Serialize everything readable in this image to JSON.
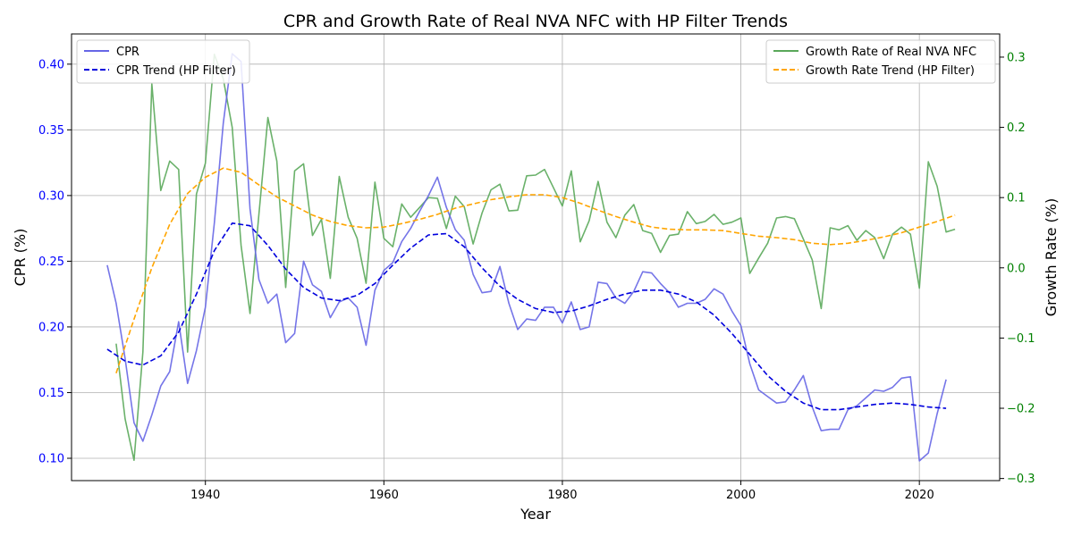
{
  "chart_data": {
    "type": "line",
    "title": "CPR and Growth Rate of Real NVA NFC with HP Filter Trends",
    "xlabel": "Year",
    "ylabel_left": "CPR (%)",
    "ylabel_right": "Growth Rate (%)",
    "xlim": [
      1925,
      2029
    ],
    "ylim_left": [
      0.083,
      0.423
    ],
    "ylim_right": [
      -0.303,
      0.333
    ],
    "x_ticks": [
      1940,
      1960,
      1980,
      2000,
      2020
    ],
    "y_ticks_left": [
      0.1,
      0.15,
      0.2,
      0.25,
      0.3,
      0.35,
      0.4
    ],
    "y_ticks_right": [
      -0.3,
      -0.2,
      -0.1,
      0.0,
      0.1,
      0.2,
      0.3
    ],
    "y_tick_labels_left": [
      "0.10",
      "0.15",
      "0.20",
      "0.25",
      "0.30",
      "0.35",
      "0.40"
    ],
    "y_tick_labels_right": [
      "−0.3",
      "−0.2",
      "−0.1",
      "0.0",
      "0.1",
      "0.2",
      "0.3"
    ],
    "grid": true,
    "legend_left_placement": "upper-left",
    "legend_right_placement": "upper-right",
    "colors": {
      "cpr": "#6666e6",
      "cpr_trend": "#0000dd",
      "growth": "#5aa85a",
      "growth_trend": "#ffa500",
      "left_tick": "#0000ff",
      "right_tick": "#008000"
    },
    "series": [
      {
        "name": "CPR",
        "axis": "left",
        "style": "solid",
        "color_key": "cpr",
        "x": [
          1929,
          1930,
          1931,
          1932,
          1933,
          1934,
          1935,
          1936,
          1937,
          1938,
          1939,
          1940,
          1941,
          1942,
          1943,
          1944,
          1945,
          1946,
          1947,
          1948,
          1949,
          1950,
          1951,
          1952,
          1953,
          1954,
          1955,
          1956,
          1957,
          1958,
          1959,
          1960,
          1961,
          1962,
          1963,
          1964,
          1965,
          1966,
          1967,
          1968,
          1969,
          1970,
          1971,
          1972,
          1973,
          1974,
          1975,
          1976,
          1977,
          1978,
          1979,
          1980,
          1981,
          1982,
          1983,
          1984,
          1985,
          1986,
          1987,
          1988,
          1989,
          1990,
          1991,
          1992,
          1993,
          1994,
          1995,
          1996,
          1997,
          1998,
          1999,
          2000,
          2001,
          2002,
          2003,
          2004,
          2005,
          2006,
          2007,
          2008,
          2009,
          2010,
          2011,
          2012,
          2013,
          2014,
          2015,
          2016,
          2017,
          2018,
          2019,
          2020,
          2021,
          2022,
          2023
        ],
        "y": [
          0.247,
          0.218,
          0.176,
          0.127,
          0.113,
          0.133,
          0.155,
          0.166,
          0.204,
          0.157,
          0.182,
          0.215,
          0.279,
          0.355,
          0.408,
          0.402,
          0.29,
          0.236,
          0.218,
          0.225,
          0.188,
          0.195,
          0.25,
          0.232,
          0.227,
          0.207,
          0.219,
          0.222,
          0.215,
          0.186,
          0.228,
          0.243,
          0.249,
          0.265,
          0.275,
          0.288,
          0.3,
          0.314,
          0.291,
          0.274,
          0.266,
          0.24,
          0.226,
          0.227,
          0.246,
          0.218,
          0.198,
          0.206,
          0.205,
          0.215,
          0.215,
          0.203,
          0.219,
          0.198,
          0.2,
          0.234,
          0.233,
          0.222,
          0.218,
          0.227,
          0.242,
          0.241,
          0.233,
          0.226,
          0.215,
          0.218,
          0.218,
          0.221,
          0.229,
          0.225,
          0.212,
          0.201,
          0.172,
          0.152,
          0.147,
          0.142,
          0.143,
          0.152,
          0.163,
          0.139,
          0.121,
          0.122,
          0.122,
          0.137,
          0.14,
          0.146,
          0.152,
          0.151,
          0.154,
          0.161,
          0.162,
          0.098,
          0.104,
          0.134,
          0.16
        ]
      },
      {
        "name": "CPR Trend (HP Filter)",
        "axis": "left",
        "style": "dashed",
        "color_key": "cpr_trend",
        "x": [
          1929,
          1931,
          1933,
          1935,
          1937,
          1939,
          1941,
          1943,
          1945,
          1947,
          1949,
          1951,
          1953,
          1955,
          1957,
          1959,
          1961,
          1963,
          1965,
          1967,
          1969,
          1971,
          1973,
          1975,
          1977,
          1979,
          1981,
          1983,
          1985,
          1987,
          1989,
          1991,
          1993,
          1995,
          1997,
          1999,
          2001,
          2003,
          2005,
          2007,
          2009,
          2011,
          2013,
          2015,
          2017,
          2019,
          2021,
          2023
        ],
        "y": [
          0.183,
          0.174,
          0.171,
          0.178,
          0.196,
          0.225,
          0.258,
          0.279,
          0.277,
          0.262,
          0.244,
          0.23,
          0.222,
          0.22,
          0.224,
          0.233,
          0.247,
          0.26,
          0.27,
          0.271,
          0.261,
          0.245,
          0.231,
          0.221,
          0.214,
          0.211,
          0.212,
          0.216,
          0.221,
          0.225,
          0.228,
          0.228,
          0.225,
          0.219,
          0.209,
          0.195,
          0.179,
          0.163,
          0.151,
          0.142,
          0.137,
          0.137,
          0.139,
          0.141,
          0.142,
          0.141,
          0.139,
          0.138
        ]
      },
      {
        "name": "Growth Rate of Real NVA NFC",
        "axis": "right",
        "style": "solid",
        "color_key": "growth",
        "x": [
          1930,
          1931,
          1932,
          1933,
          1934,
          1935,
          1936,
          1937,
          1938,
          1939,
          1940,
          1941,
          1942,
          1943,
          1944,
          1945,
          1946,
          1947,
          1948,
          1949,
          1950,
          1951,
          1952,
          1953,
          1954,
          1955,
          1956,
          1957,
          1958,
          1959,
          1960,
          1961,
          1962,
          1963,
          1964,
          1965,
          1966,
          1967,
          1968,
          1969,
          1970,
          1971,
          1972,
          1973,
          1974,
          1975,
          1976,
          1977,
          1978,
          1979,
          1980,
          1981,
          1982,
          1983,
          1984,
          1985,
          1986,
          1987,
          1988,
          1989,
          1990,
          1991,
          1992,
          1993,
          1994,
          1995,
          1996,
          1997,
          1998,
          1999,
          2000,
          2001,
          2002,
          2003,
          2004,
          2005,
          2006,
          2007,
          2008,
          2009,
          2010,
          2011,
          2012,
          2013,
          2014,
          2015,
          2016,
          2017,
          2018,
          2019,
          2020,
          2021,
          2022,
          2023,
          2024
        ],
        "y": [
          -0.108,
          -0.215,
          -0.274,
          -0.12,
          0.262,
          0.11,
          0.152,
          0.14,
          -0.12,
          0.105,
          0.149,
          0.304,
          0.269,
          0.2,
          0.032,
          -0.065,
          0.077,
          0.214,
          0.152,
          -0.028,
          0.138,
          0.148,
          0.046,
          0.069,
          -0.015,
          0.13,
          0.072,
          0.042,
          -0.022,
          0.122,
          0.042,
          0.03,
          0.091,
          0.072,
          0.086,
          0.1,
          0.099,
          0.056,
          0.102,
          0.087,
          0.034,
          0.078,
          0.111,
          0.119,
          0.081,
          0.082,
          0.131,
          0.132,
          0.14,
          0.114,
          0.088,
          0.138,
          0.037,
          0.067,
          0.123,
          0.065,
          0.043,
          0.075,
          0.09,
          0.053,
          0.049,
          0.022,
          0.046,
          0.048,
          0.08,
          0.063,
          0.066,
          0.076,
          0.062,
          0.065,
          0.071,
          -0.008,
          0.014,
          0.035,
          0.071,
          0.073,
          0.07,
          0.041,
          0.011,
          -0.058,
          0.057,
          0.054,
          0.06,
          0.039,
          0.053,
          0.043,
          0.013,
          0.048,
          0.058,
          0.048,
          -0.029,
          0.151,
          0.116,
          0.051,
          0.055
        ]
      },
      {
        "name": "Growth Rate Trend (HP Filter)",
        "axis": "right",
        "style": "dashed",
        "color_key": "growth_trend",
        "x": [
          1930,
          1932,
          1934,
          1936,
          1938,
          1940,
          1942,
          1944,
          1946,
          1948,
          1950,
          1952,
          1954,
          1956,
          1958,
          1960,
          1962,
          1964,
          1966,
          1968,
          1970,
          1972,
          1974,
          1976,
          1978,
          1980,
          1982,
          1984,
          1986,
          1988,
          1990,
          1992,
          1994,
          1996,
          1998,
          2000,
          2002,
          2004,
          2006,
          2008,
          2010,
          2012,
          2014,
          2016,
          2018,
          2020,
          2022,
          2024
        ],
        "y": [
          -0.15,
          -0.073,
          0.0,
          0.062,
          0.106,
          0.129,
          0.142,
          0.136,
          0.118,
          0.101,
          0.088,
          0.075,
          0.066,
          0.06,
          0.057,
          0.058,
          0.063,
          0.069,
          0.076,
          0.085,
          0.091,
          0.097,
          0.101,
          0.104,
          0.104,
          0.1,
          0.092,
          0.082,
          0.073,
          0.065,
          0.058,
          0.055,
          0.054,
          0.054,
          0.053,
          0.049,
          0.045,
          0.043,
          0.04,
          0.035,
          0.033,
          0.035,
          0.039,
          0.044,
          0.05,
          0.058,
          0.066,
          0.075
        ]
      }
    ]
  }
}
